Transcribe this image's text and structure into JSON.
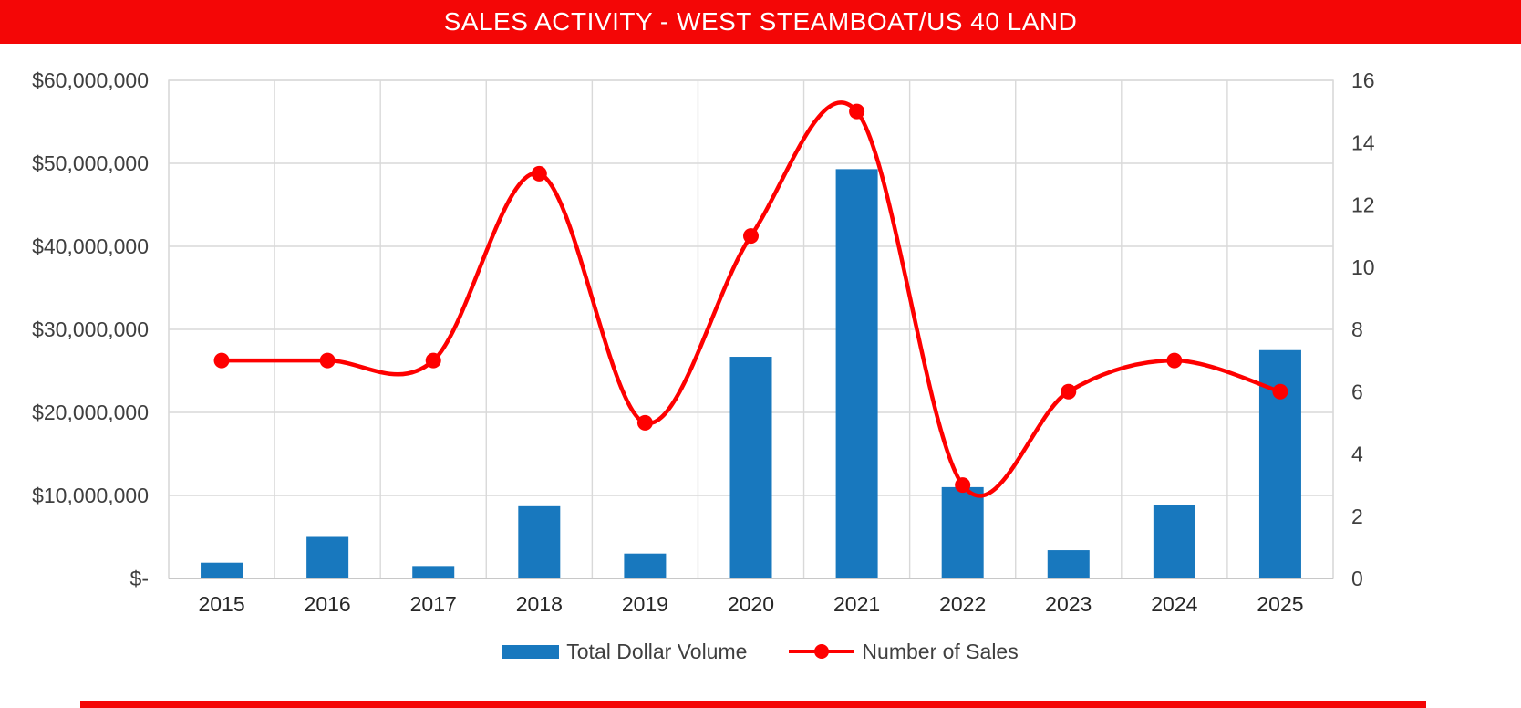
{
  "header": {
    "title": "SALES ACTIVITY - WEST STEAMBOAT/US 40 LAND",
    "bg_color": "#f40606",
    "text_color": "#ffffff"
  },
  "chart_data": {
    "type": "bar",
    "subtype": "combo-bar-line",
    "categories": [
      "2015",
      "2016",
      "2017",
      "2018",
      "2019",
      "2020",
      "2021",
      "2022",
      "2023",
      "2024",
      "2025"
    ],
    "series": [
      {
        "name": "Total Dollar Volume",
        "type": "bar",
        "axis": "left",
        "color": "#1878be",
        "values": [
          1900000,
          5000000,
          1500000,
          8700000,
          3000000,
          26700000,
          49300000,
          11000000,
          3400000,
          8800000,
          27500000
        ]
      },
      {
        "name": "Number of Sales",
        "type": "line",
        "axis": "right",
        "color": "#fe0000",
        "smooth": true,
        "values": [
          7,
          7,
          7,
          13,
          5,
          11,
          15,
          3,
          6,
          7,
          6
        ]
      }
    ],
    "left_axis": {
      "min": 0,
      "max": 60000000,
      "step": 10000000,
      "tick_labels": [
        "$-",
        "$10,000,000",
        "$20,000,000",
        "$30,000,000",
        "$40,000,000",
        "$50,000,000",
        "$60,000,000"
      ]
    },
    "right_axis": {
      "min": 0,
      "max": 16,
      "step": 2,
      "tick_labels": [
        "0",
        "2",
        "4",
        "6",
        "8",
        "10",
        "12",
        "14",
        "16"
      ]
    },
    "grid": true,
    "legend_position": "bottom",
    "gridline_color": "#d9d9d9",
    "axis_text_color": "#3f3f3f"
  }
}
